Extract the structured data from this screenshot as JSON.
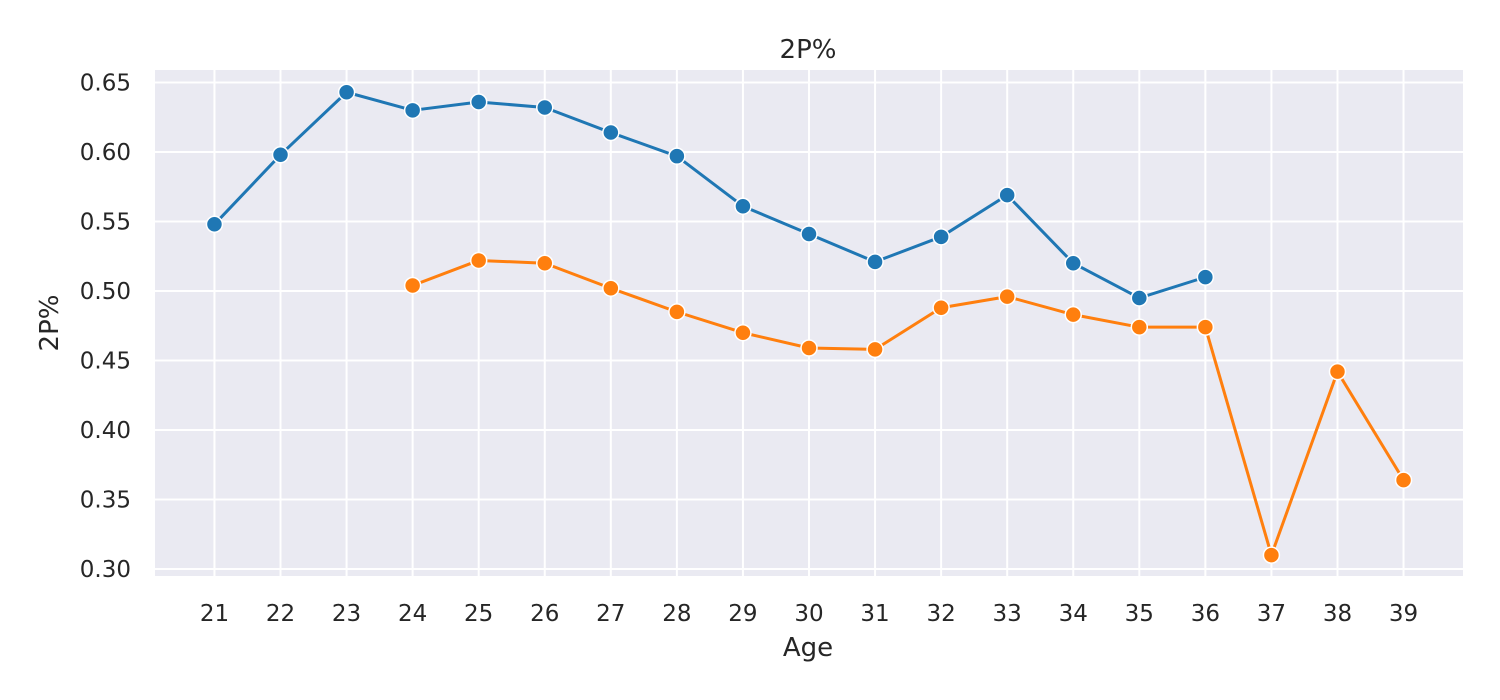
{
  "chart_data": {
    "type": "line",
    "title": "2P%",
    "xlabel": "Age",
    "ylabel": "2P%",
    "x_ticks": [
      21,
      22,
      23,
      24,
      25,
      26,
      27,
      28,
      29,
      30,
      31,
      32,
      33,
      34,
      35,
      36,
      37,
      38,
      39
    ],
    "y_ticks": [
      "0.30",
      "0.35",
      "0.40",
      "0.45",
      "0.50",
      "0.55",
      "0.60",
      "0.65"
    ],
    "xlim": [
      20.1,
      39.9
    ],
    "ylim": [
      0.295,
      0.659
    ],
    "grid": true,
    "legend": false,
    "background": "#eaeaf2",
    "series": [
      {
        "color": "#1f77b4",
        "points": [
          [
            21,
            0.548
          ],
          [
            22,
            0.598
          ],
          [
            23,
            0.643
          ],
          [
            24,
            0.63
          ],
          [
            25,
            0.636
          ],
          [
            26,
            0.632
          ],
          [
            27,
            0.614
          ],
          [
            28,
            0.597
          ],
          [
            29,
            0.561
          ],
          [
            30,
            0.541
          ],
          [
            31,
            0.521
          ],
          [
            32,
            0.539
          ],
          [
            33,
            0.569
          ],
          [
            34,
            0.52
          ],
          [
            35,
            0.495
          ],
          [
            36,
            0.51
          ]
        ]
      },
      {
        "color": "#ff7f0e",
        "points": [
          [
            24,
            0.504
          ],
          [
            25,
            0.522
          ],
          [
            26,
            0.52
          ],
          [
            27,
            0.502
          ],
          [
            28,
            0.485
          ],
          [
            29,
            0.47
          ],
          [
            30,
            0.459
          ],
          [
            31,
            0.458
          ],
          [
            32,
            0.488
          ],
          [
            33,
            0.496
          ],
          [
            34,
            0.483
          ],
          [
            35,
            0.474
          ],
          [
            36,
            0.474
          ],
          [
            37,
            0.31
          ],
          [
            38,
            0.442
          ],
          [
            39,
            0.364
          ]
        ]
      }
    ]
  }
}
